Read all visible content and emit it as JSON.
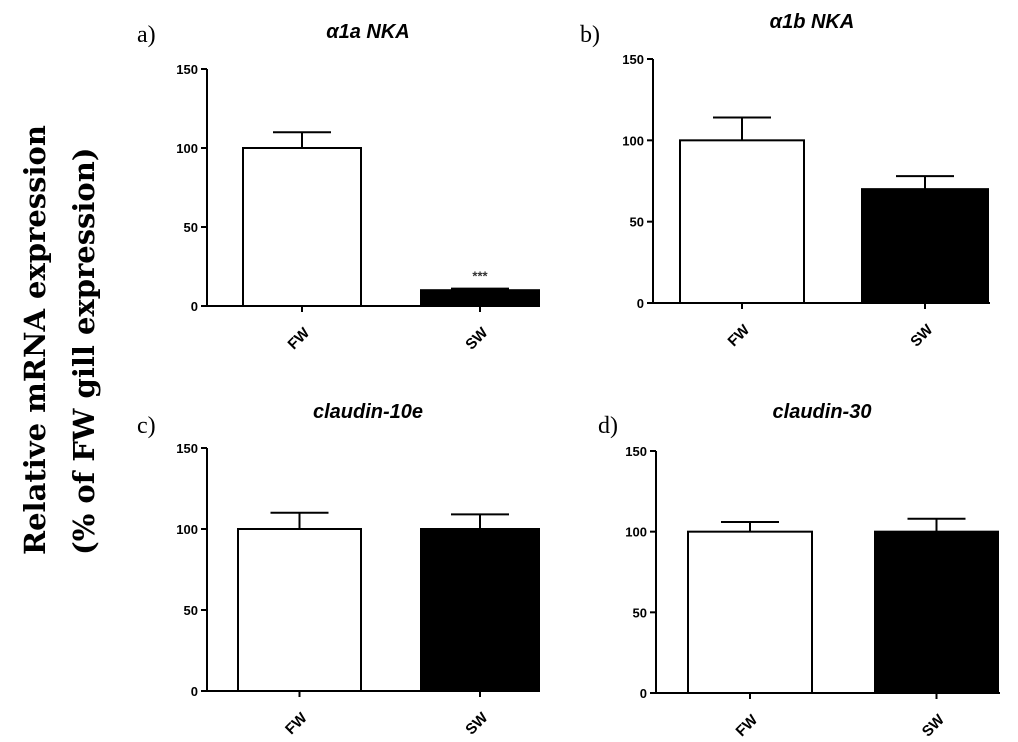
{
  "figure": {
    "ylabel_line1": "Relative mRNA expression",
    "ylabel_line2": "(% of FW gill expression)"
  },
  "colors": {
    "FW": "#ffffff",
    "SW": "#000000",
    "stroke": "#000000"
  },
  "chart_data": [
    {
      "type": "bar",
      "panel": "a)",
      "title": "α1a NKA",
      "categories": [
        "FW",
        "SW"
      ],
      "values": [
        100,
        10
      ],
      "errors": [
        10,
        1
      ],
      "annotations": [
        "",
        "***"
      ],
      "ylim": [
        0,
        150
      ],
      "yticks": [
        0,
        50,
        100,
        150
      ],
      "grid": false
    },
    {
      "type": "bar",
      "panel": "b)",
      "title": "α1b NKA",
      "categories": [
        "FW",
        "SW"
      ],
      "values": [
        100,
        70
      ],
      "errors": [
        14,
        8
      ],
      "annotations": [
        "",
        ""
      ],
      "ylim": [
        0,
        150
      ],
      "yticks": [
        0,
        50,
        100,
        150
      ],
      "grid": false
    },
    {
      "type": "bar",
      "panel": "c)",
      "title": "claudin-10e",
      "categories": [
        "FW",
        "SW"
      ],
      "values": [
        100,
        100
      ],
      "errors": [
        10,
        9
      ],
      "annotations": [
        "",
        ""
      ],
      "ylim": [
        0,
        150
      ],
      "yticks": [
        0,
        50,
        100,
        150
      ],
      "grid": false
    },
    {
      "type": "bar",
      "panel": "d)",
      "title": "claudin-30",
      "categories": [
        "FW",
        "SW"
      ],
      "values": [
        100,
        100
      ],
      "errors": [
        6,
        8
      ],
      "annotations": [
        "",
        ""
      ],
      "ylim": [
        0,
        150
      ],
      "yticks": [
        0,
        50,
        100,
        150
      ],
      "grid": false
    }
  ]
}
